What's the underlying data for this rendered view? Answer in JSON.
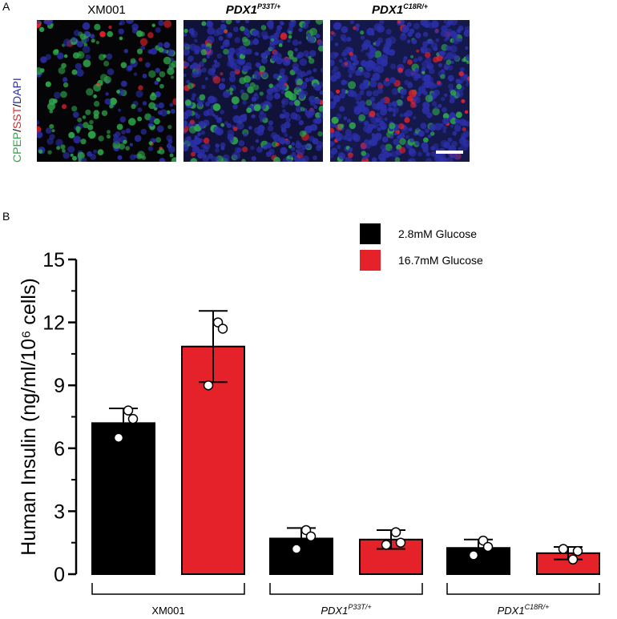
{
  "panel_a": {
    "letter": "A",
    "stain": {
      "cpep": "CPEP",
      "sst": "SST",
      "dapi": "DAPI",
      "sep": "/",
      "colors": {
        "cpep": "#2ea84a",
        "sst": "#e52229",
        "dapi": "#2b2fa8"
      }
    },
    "images": [
      {
        "title_main": "XM001",
        "title_sup": ""
      },
      {
        "title_main": "PDX1",
        "title_sup": "P33T/+"
      },
      {
        "title_main": "PDX1",
        "title_sup": "C18R/+"
      }
    ]
  },
  "panel_b": {
    "letter": "B"
  },
  "chart_data": {
    "type": "bar",
    "ylabel": "Human Insulin (ng/ml/10⁶ cells)",
    "ylim": [
      0,
      15
    ],
    "yticks": [
      "0",
      "3",
      "6",
      "9",
      "12",
      "15"
    ],
    "categories": [
      {
        "main": "XM001",
        "sup": ""
      },
      {
        "main": "PDX1",
        "sup": "P33T/+"
      },
      {
        "main": "PDX1",
        "sup": "C18R/+"
      }
    ],
    "series": [
      {
        "name": "2.8mM Glucose",
        "color": "#000000",
        "values": [
          7.2,
          1.7,
          1.25
        ],
        "errors": [
          0.7,
          0.5,
          0.4
        ],
        "points": [
          [
            6.5,
            7.8,
            7.4
          ],
          [
            1.2,
            2.1,
            1.8
          ],
          [
            0.9,
            1.6,
            1.3
          ]
        ]
      },
      {
        "name": "16.7mM Glucose",
        "color": "#e52229",
        "values": [
          10.85,
          1.65,
          1.0
        ],
        "errors": [
          1.7,
          0.45,
          0.3
        ],
        "points": [
          [
            9.0,
            12.0,
            11.7
          ],
          [
            1.4,
            2.0,
            1.5
          ],
          [
            1.2,
            0.7,
            1.1
          ]
        ]
      }
    ],
    "legend_position": "top-right",
    "grid": false
  }
}
